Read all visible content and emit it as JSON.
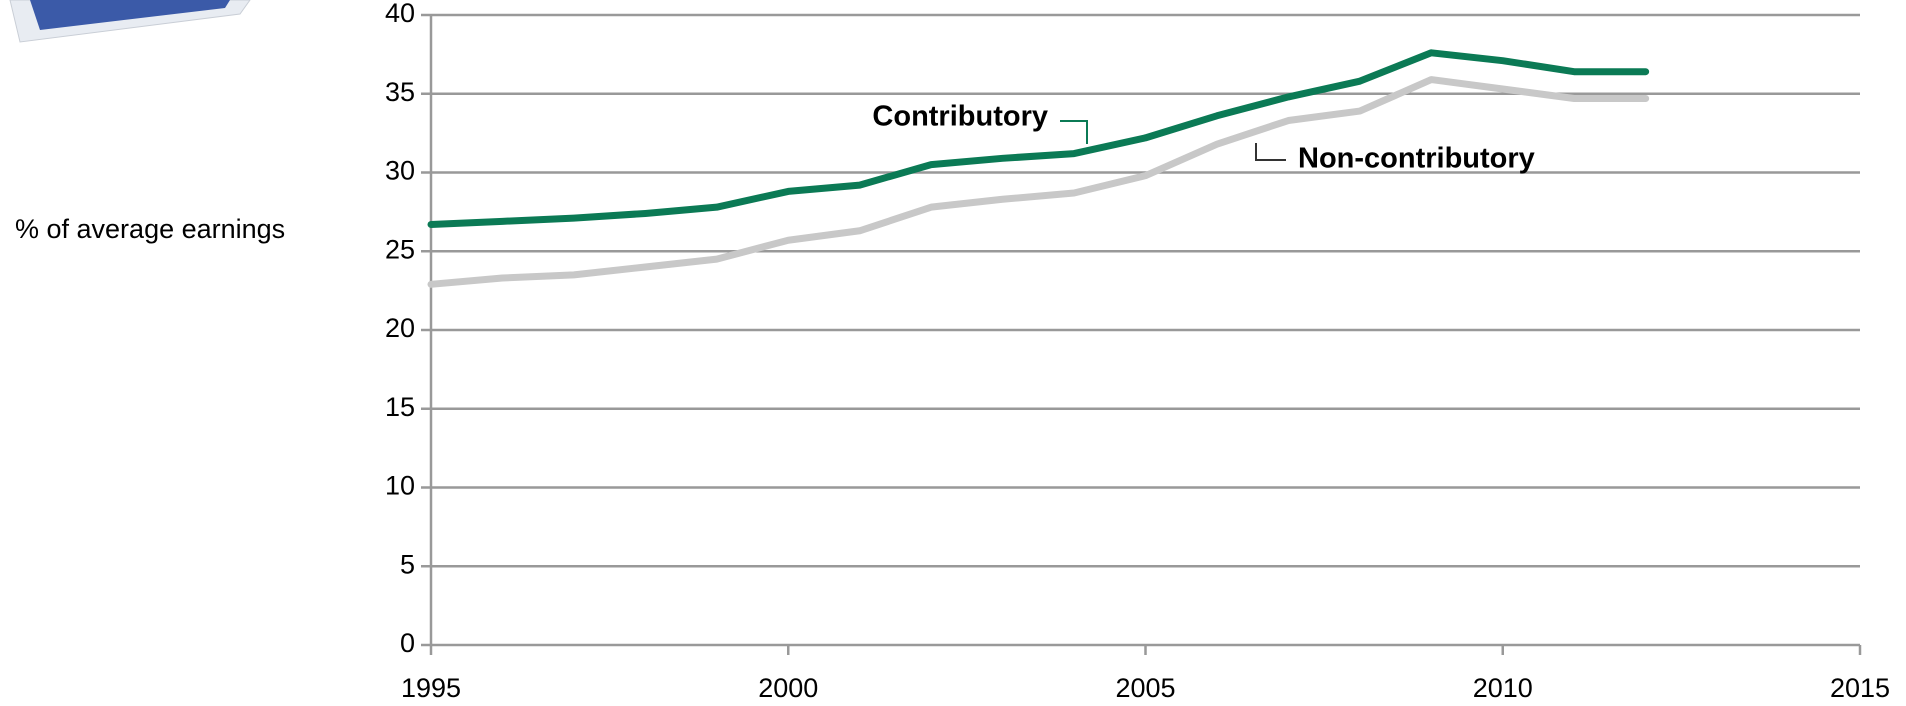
{
  "chart_data": {
    "type": "line",
    "y_label": "% of average earnings",
    "x": [
      1995,
      1996,
      1997,
      1998,
      1999,
      2000,
      2001,
      2002,
      2003,
      2004,
      2005,
      2006,
      2007,
      2008,
      2009,
      2010,
      2011,
      2012
    ],
    "series": [
      {
        "name": "Contributory",
        "color": "#0b7a55",
        "values": [
          26.7,
          26.9,
          27.1,
          27.4,
          27.8,
          28.8,
          29.2,
          30.5,
          30.9,
          31.2,
          32.2,
          33.6,
          34.8,
          35.8,
          37.6,
          37.1,
          36.4,
          36.4
        ]
      },
      {
        "name": "Non-contributory",
        "color": "#c8c8c8",
        "values": [
          22.9,
          23.3,
          23.5,
          24.0,
          24.5,
          25.7,
          26.3,
          27.8,
          28.3,
          28.7,
          29.8,
          31.8,
          33.3,
          33.9,
          35.9,
          35.3,
          34.7,
          34.7
        ]
      }
    ],
    "xlim": [
      1995,
      2015
    ],
    "xticks": [
      1995,
      2000,
      2005,
      2010,
      2015
    ],
    "ylim": [
      0,
      40
    ],
    "yticks": [
      0,
      5,
      10,
      15,
      20,
      25,
      30,
      35,
      40
    ],
    "grid": true
  }
}
